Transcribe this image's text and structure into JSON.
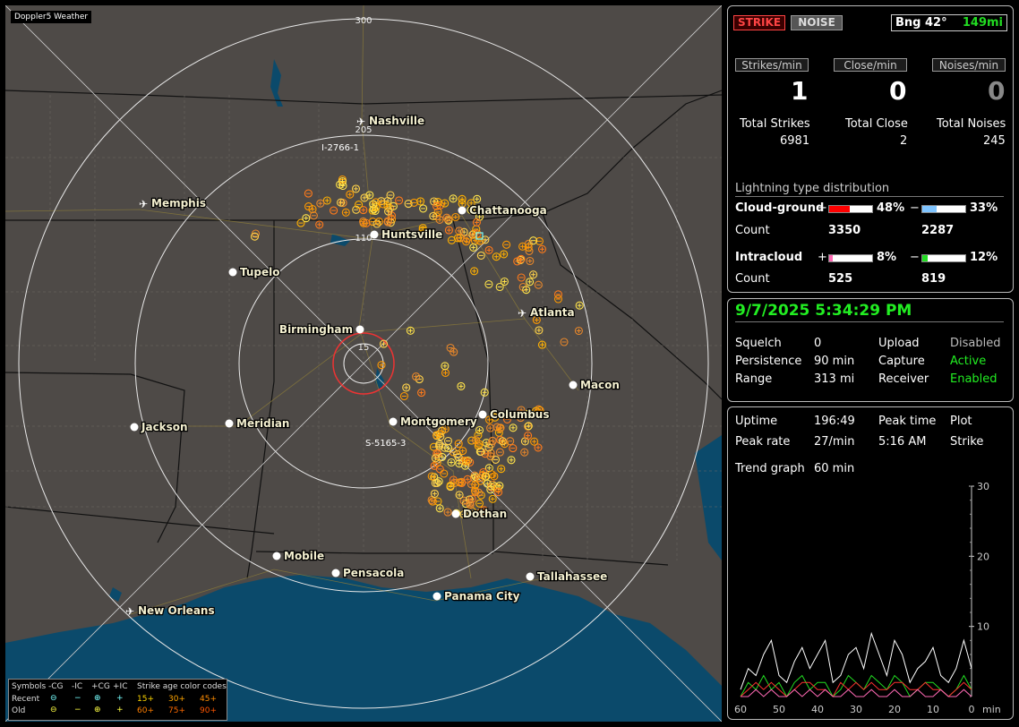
{
  "map": {
    "badge": "Doppler5 Weather",
    "range_labels": [
      "300",
      "205",
      "110",
      "15"
    ],
    "cities": [
      {
        "name": "Nashville",
        "type": "airport"
      },
      {
        "name": "Memphis",
        "type": "airport"
      },
      {
        "name": "Chattanooga",
        "type": "city"
      },
      {
        "name": "Huntsville",
        "type": "city"
      },
      {
        "name": "Tupelo",
        "type": "city"
      },
      {
        "name": "Atlanta",
        "type": "airport"
      },
      {
        "name": "Birmingham",
        "type": "city"
      },
      {
        "name": "Macon",
        "type": "city"
      },
      {
        "name": "Jackson",
        "type": "city"
      },
      {
        "name": "Meridian",
        "type": "city"
      },
      {
        "name": "Montgomery",
        "type": "city"
      },
      {
        "name": "Columbus",
        "type": "city"
      },
      {
        "name": "Dothan",
        "type": "city"
      },
      {
        "name": "Mobile",
        "type": "city"
      },
      {
        "name": "Pensacola",
        "type": "city"
      },
      {
        "name": "Tallahassee",
        "type": "city"
      },
      {
        "name": "Panama City",
        "type": "city"
      },
      {
        "name": "New Orleans",
        "type": "airport"
      }
    ],
    "storm_labels": [
      "I-2766-1",
      "S-5165-3"
    ],
    "legend": {
      "symbols": "Symbols",
      "cg_minus": "-CG",
      "ic_minus": "-IC",
      "cg_plus": "+CG",
      "ic_plus": "+IC",
      "age_title": "Strike age color codes",
      "recent": "Recent",
      "old": "Old",
      "ages_recent": [
        "15+",
        "30+",
        "45+"
      ],
      "ages_old": [
        "60+",
        "75+",
        "90+"
      ]
    }
  },
  "status": {
    "strike_button": "STRIKE",
    "noise_button": "NOISE",
    "bearing": "Bng 42°",
    "distance": "149mi",
    "rates": [
      {
        "label": "Strikes/min",
        "value": "1"
      },
      {
        "label": "Close/min",
        "value": "0"
      },
      {
        "label": "Noises/min",
        "value": "0"
      }
    ],
    "totals": [
      {
        "label": "Total Strikes",
        "value": "6981"
      },
      {
        "label": "Total Close",
        "value": "2"
      },
      {
        "label": "Total Noises",
        "value": "245"
      }
    ]
  },
  "distribution": {
    "title": "Lightning type distribution",
    "cloud_ground": {
      "label": "Cloud-ground",
      "plus_pct": "48%",
      "minus_pct": "33%",
      "count_label": "Count",
      "plus_count": "3350",
      "minus_count": "2287",
      "plus_fill": 0.48,
      "minus_fill": 0.33
    },
    "intracloud": {
      "label": "Intracloud",
      "plus_pct": "8%",
      "minus_pct": "12%",
      "count_label": "Count",
      "plus_count": "525",
      "minus_count": "819",
      "plus_fill": 0.08,
      "minus_fill": 0.12
    },
    "plus_sign": "+",
    "minus_sign": "−",
    "colors": {
      "cg_plus": "#ff0000",
      "cg_minus": "#7fc4ff",
      "ic_plus": "#ff69b4",
      "ic_minus": "#22dd22"
    }
  },
  "settings": {
    "datetime": "9/7/2025 5:34:29 PM",
    "squelch_label": "Squelch",
    "squelch": "0",
    "persistence_label": "Persistence",
    "persistence": "90 min",
    "range_label": "Range",
    "range": "313 mi",
    "upload_label": "Upload",
    "upload": "Disabled",
    "capture_label": "Capture",
    "capture": "Active",
    "receiver_label": "Receiver",
    "receiver": "Enabled"
  },
  "stats": {
    "uptime_label": "Uptime",
    "uptime": "196:49",
    "peak_time_label": "Peak time",
    "peak_time": "5:16 AM",
    "plot_label": "Plot",
    "plot": "Strike",
    "peak_rate_label": "Peak rate",
    "peak_rate": "27/min",
    "trend_label": "Trend graph",
    "trend": "60 min"
  },
  "chart_data": {
    "type": "line",
    "title": "",
    "xlabel": "min",
    "ylabel": "",
    "x_ticks": [
      "60",
      "50",
      "40",
      "30",
      "20",
      "10",
      "0"
    ],
    "y_ticks": [
      "30",
      "20",
      "10"
    ],
    "xlim": [
      60,
      0
    ],
    "ylim": [
      0,
      30
    ],
    "x": [
      60,
      58,
      56,
      54,
      52,
      50,
      48,
      46,
      44,
      42,
      40,
      38,
      36,
      34,
      32,
      30,
      28,
      26,
      24,
      22,
      20,
      18,
      16,
      14,
      12,
      10,
      8,
      6,
      4,
      2,
      0
    ],
    "series": [
      {
        "color": "#ffffff",
        "values": [
          1,
          4,
          3,
          6,
          8,
          3,
          2,
          5,
          7,
          4,
          6,
          8,
          2,
          3,
          6,
          7,
          4,
          9,
          6,
          3,
          8,
          6,
          2,
          4,
          5,
          7,
          3,
          2,
          4,
          8,
          4
        ]
      },
      {
        "color": "#22dd22",
        "values": [
          0,
          2,
          1,
          3,
          1,
          2,
          0,
          2,
          3,
          1,
          2,
          2,
          0,
          1,
          3,
          2,
          1,
          3,
          2,
          1,
          3,
          2,
          0,
          1,
          2,
          2,
          1,
          0,
          1,
          3,
          1
        ]
      },
      {
        "color": "#ff3030",
        "values": [
          0,
          1,
          2,
          1,
          2,
          1,
          0,
          1,
          2,
          2,
          1,
          1,
          0,
          2,
          1,
          2,
          1,
          2,
          1,
          1,
          2,
          2,
          1,
          1,
          2,
          1,
          1,
          0,
          1,
          2,
          1
        ]
      },
      {
        "color": "#ff69b4",
        "values": [
          0,
          0,
          1,
          0,
          1,
          0,
          0,
          1,
          0,
          1,
          0,
          1,
          0,
          0,
          1,
          0,
          0,
          1,
          0,
          0,
          1,
          0,
          0,
          1,
          0,
          0,
          1,
          0,
          0,
          1,
          0
        ]
      }
    ]
  }
}
